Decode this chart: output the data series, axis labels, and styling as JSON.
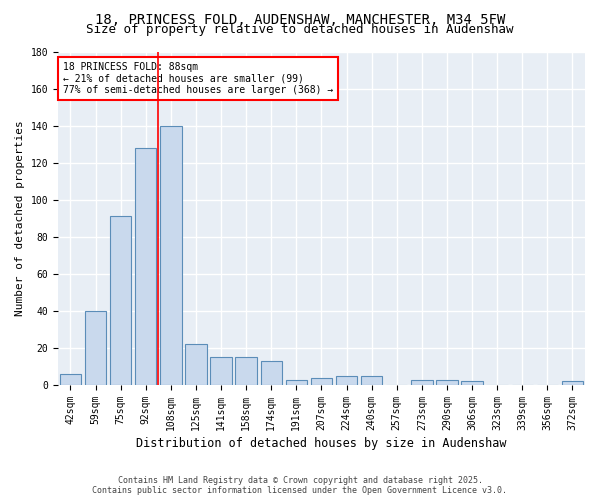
{
  "title1": "18, PRINCESS FOLD, AUDENSHAW, MANCHESTER, M34 5FW",
  "title2": "Size of property relative to detached houses in Audenshaw",
  "xlabel": "Distribution of detached houses by size in Audenshaw",
  "ylabel": "Number of detached properties",
  "categories": [
    "42sqm",
    "59sqm",
    "75sqm",
    "92sqm",
    "108sqm",
    "125sqm",
    "141sqm",
    "158sqm",
    "174sqm",
    "191sqm",
    "207sqm",
    "224sqm",
    "240sqm",
    "257sqm",
    "273sqm",
    "290sqm",
    "306sqm",
    "323sqm",
    "339sqm",
    "356sqm",
    "372sqm"
  ],
  "values": [
    6,
    40,
    91,
    128,
    140,
    22,
    15,
    15,
    13,
    3,
    4,
    5,
    5,
    0,
    3,
    3,
    2,
    0,
    0,
    0,
    2
  ],
  "bar_color": "#c9d9ed",
  "bar_edge_color": "#5b8db8",
  "red_line_x": 3.5,
  "annotation_text": "18 PRINCESS FOLD: 88sqm\n← 21% of detached houses are smaller (99)\n77% of semi-detached houses are larger (368) →",
  "ylim": [
    0,
    180
  ],
  "yticks": [
    0,
    20,
    40,
    60,
    80,
    100,
    120,
    140,
    160,
    180
  ],
  "background_color": "#e8eef5",
  "grid_color": "white",
  "footer1": "Contains HM Land Registry data © Crown copyright and database right 2025.",
  "footer2": "Contains public sector information licensed under the Open Government Licence v3.0.",
  "title_fontsize": 10,
  "subtitle_fontsize": 9,
  "bar_fontsize": 7,
  "ylabel_fontsize": 8,
  "xlabel_fontsize": 8.5,
  "annotation_fontsize": 7,
  "footer_fontsize": 6
}
